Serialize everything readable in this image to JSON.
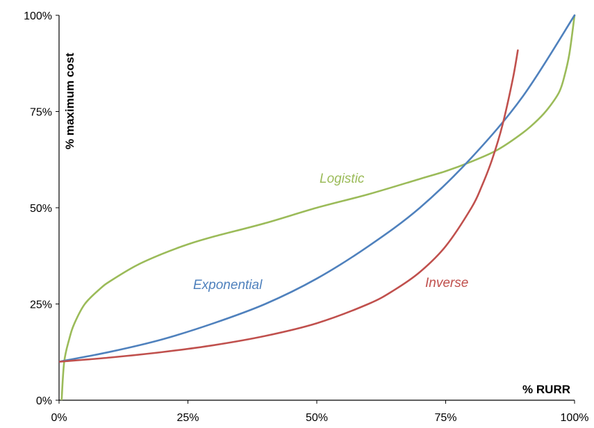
{
  "chart_data": {
    "type": "line",
    "title": "",
    "xlabel": "% RURR",
    "ylabel": "% maximum cost",
    "xlim": [
      0,
      100
    ],
    "ylim": [
      0,
      100
    ],
    "x_ticks": [
      "0%",
      "25%",
      "50%",
      "75%",
      "100%"
    ],
    "y_ticks": [
      "0%",
      "25%",
      "50%",
      "75%",
      "100%"
    ],
    "grid": false,
    "legend": "none",
    "series": [
      {
        "name": "Logistic",
        "color": "#9bbb59",
        "x": [
          0.5,
          1,
          2,
          3,
          5,
          8,
          10,
          15,
          20,
          25,
          30,
          40,
          50,
          60,
          70,
          75,
          80,
          85,
          90,
          93,
          95,
          97,
          98,
          99,
          100
        ],
        "y": [
          0,
          10,
          16,
          20,
          25,
          29,
          31,
          35,
          38,
          40.5,
          42.5,
          46,
          50,
          53.5,
          57.5,
          59.5,
          62,
          65,
          69.5,
          73,
          76,
          80,
          84,
          90,
          100
        ]
      },
      {
        "name": "Exponential",
        "color": "#4f81bd",
        "x": [
          0,
          10,
          20,
          30,
          40,
          50,
          60,
          70,
          80,
          90,
          100
        ],
        "y": [
          10,
          12.6,
          15.8,
          20,
          25,
          31.6,
          40,
          50,
          63,
          79,
          100
        ]
      },
      {
        "name": "Inverse",
        "color": "#c0504d",
        "x": [
          0,
          10,
          20,
          30,
          40,
          50,
          60,
          65,
          70,
          75,
          80,
          82,
          84,
          86,
          88,
          89
        ],
        "y": [
          10,
          11.1,
          12.5,
          14.3,
          16.7,
          20,
          25,
          28.6,
          33.3,
          40,
          50,
          55.6,
          62.5,
          71.4,
          83.3,
          90.9
        ]
      }
    ]
  }
}
